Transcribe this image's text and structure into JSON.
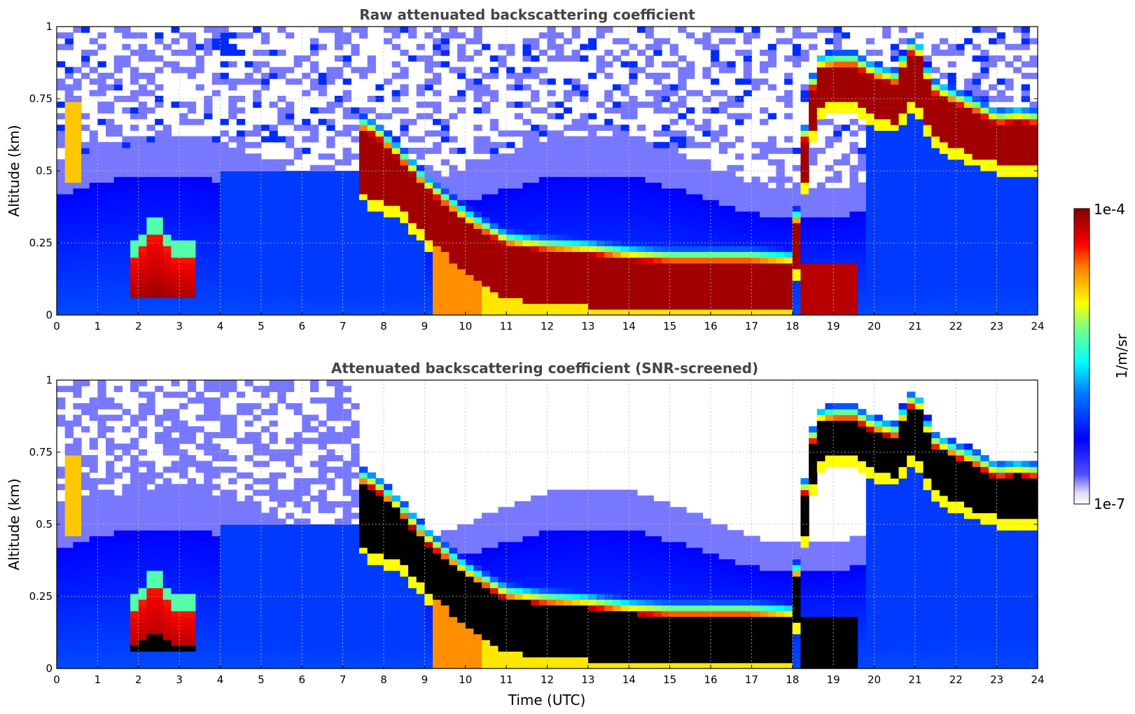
{
  "chart_data": [
    {
      "type": "heatmap",
      "title": "Raw attenuated backscattering coefficient",
      "xlabel": "",
      "ylabel": "Altitude (km)",
      "xlim": [
        0,
        24
      ],
      "ylim": [
        0,
        1
      ],
      "xticks": [
        0,
        1,
        2,
        3,
        4,
        5,
        6,
        7,
        8,
        9,
        10,
        11,
        12,
        13,
        14,
        15,
        16,
        17,
        18,
        19,
        20,
        21,
        22,
        23,
        24
      ],
      "yticks": [
        0,
        0.25,
        0.5,
        0.75,
        1
      ],
      "ytick_labels": [
        "0",
        "0.25",
        "0.5",
        "0.75",
        "1"
      ],
      "grid": true,
      "screened": false,
      "cloud_layer": {
        "time_utc": [
          7.3,
          7.8,
          8.5,
          9.0,
          10.0,
          11.0,
          12.0,
          13.0,
          14.0,
          15.0,
          16.0,
          17.0,
          18.0,
          18.4,
          18.7,
          19.0,
          19.5,
          20.0,
          20.5,
          21.0,
          21.4,
          22.0,
          22.5,
          23.0,
          23.5,
          24.0
        ],
        "top_km": [
          0.65,
          0.62,
          0.52,
          0.44,
          0.32,
          0.24,
          0.22,
          0.21,
          0.19,
          0.18,
          0.18,
          0.18,
          0.17,
          0.75,
          0.85,
          0.86,
          0.86,
          0.82,
          0.8,
          0.93,
          0.77,
          0.73,
          0.7,
          0.66,
          0.67,
          0.66
        ],
        "base_km": [
          0.45,
          0.4,
          0.36,
          0.28,
          0.15,
          0.06,
          0.04,
          0.03,
          0.02,
          0.02,
          0.02,
          0.02,
          0.02,
          0.6,
          0.72,
          0.74,
          0.74,
          0.68,
          0.67,
          0.76,
          0.63,
          0.58,
          0.55,
          0.53,
          0.52,
          0.52
        ]
      }
    },
    {
      "type": "heatmap",
      "title": "Attenuated backscattering coefficient (SNR-screened)",
      "xlabel": "Time (UTC)",
      "ylabel": "Altitude (km)",
      "xlim": [
        0,
        24
      ],
      "ylim": [
        0,
        1
      ],
      "xticks": [
        0,
        1,
        2,
        3,
        4,
        5,
        6,
        7,
        8,
        9,
        10,
        11,
        12,
        13,
        14,
        15,
        16,
        17,
        18,
        19,
        20,
        21,
        22,
        23,
        24
      ],
      "yticks": [
        0,
        0.25,
        0.5,
        0.75,
        1
      ],
      "ytick_labels": [
        "0",
        "0.25",
        "0.5",
        "0.75",
        "1"
      ],
      "grid": true,
      "screened": true
    }
  ],
  "colorbar": {
    "label": "1/m/sr",
    "max_label": "1e-4",
    "min_label": "1e-7",
    "colormap": "jet",
    "colors": [
      "#e6e6fa",
      "#0000ff",
      "#00ffff",
      "#ffff00",
      "#ff0000",
      "#800000"
    ]
  }
}
